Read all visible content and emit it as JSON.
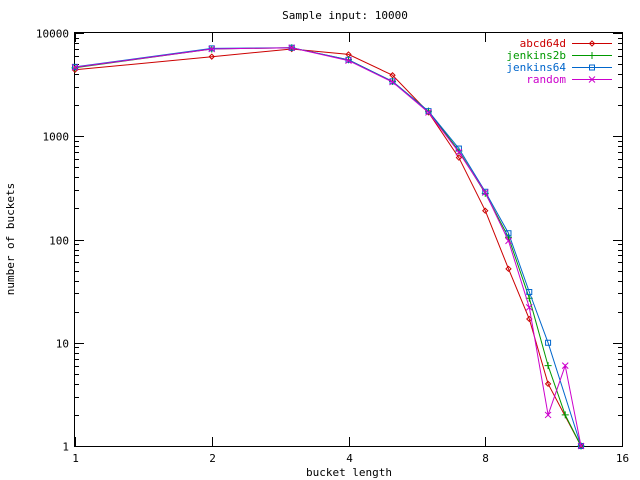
{
  "chart_data": {
    "type": "line",
    "title": "Sample input: 10000",
    "xlabel": "bucket length",
    "ylabel": "number of buckets",
    "xscale": "log2",
    "yscale": "log10",
    "xlim": [
      1,
      16
    ],
    "ylim": [
      1,
      10000
    ],
    "xticks": [
      {
        "value": 1,
        "label": "1"
      },
      {
        "value": 2,
        "label": "2"
      },
      {
        "value": 4,
        "label": "4"
      },
      {
        "value": 8,
        "label": "8"
      },
      {
        "value": 16,
        "label": "16"
      }
    ],
    "yticks": [
      {
        "value": 1,
        "label": "1"
      },
      {
        "value": 10,
        "label": "10"
      },
      {
        "value": 100,
        "label": "100"
      },
      {
        "value": 1000,
        "label": "1000"
      },
      {
        "value": 10000,
        "label": "10000"
      }
    ],
    "grid": false,
    "legend_position": "top-right",
    "x": [
      1,
      2,
      3,
      4,
      5,
      6,
      7,
      8,
      9,
      10,
      11,
      12,
      13
    ],
    "series": [
      {
        "name": "abcd64d",
        "color": "#cc0000",
        "marker": "diamond",
        "x": [
          1,
          2,
          3,
          4,
          5,
          6,
          7,
          8,
          9,
          10,
          11,
          13
        ],
        "values": [
          4400,
          5900,
          7000,
          6200,
          3900,
          1700,
          620,
          190,
          52,
          17,
          4,
          1
        ]
      },
      {
        "name": "jenkins2b",
        "color": "#009900",
        "marker": "plus",
        "x": [
          1,
          2,
          3,
          4,
          5,
          6,
          7,
          8,
          9,
          10,
          11,
          12,
          13
        ],
        "values": [
          4600,
          7000,
          7200,
          5500,
          3400,
          1750,
          720,
          280,
          105,
          27,
          6,
          2,
          1
        ]
      },
      {
        "name": "jenkins64",
        "color": "#0066cc",
        "marker": "square",
        "x": [
          1,
          2,
          3,
          4,
          5,
          6,
          7,
          8,
          9,
          10,
          11,
          13
        ],
        "values": [
          4700,
          7100,
          7200,
          5500,
          3400,
          1750,
          760,
          290,
          115,
          31,
          10,
          1
        ]
      },
      {
        "name": "random",
        "color": "#cc00cc",
        "marker": "x",
        "x": [
          1,
          2,
          3,
          4,
          5,
          6,
          7,
          8,
          9,
          10,
          11,
          12,
          13
        ],
        "values": [
          4650,
          7000,
          7200,
          5400,
          3350,
          1700,
          700,
          285,
          97,
          22,
          2,
          6,
          1
        ]
      }
    ]
  }
}
